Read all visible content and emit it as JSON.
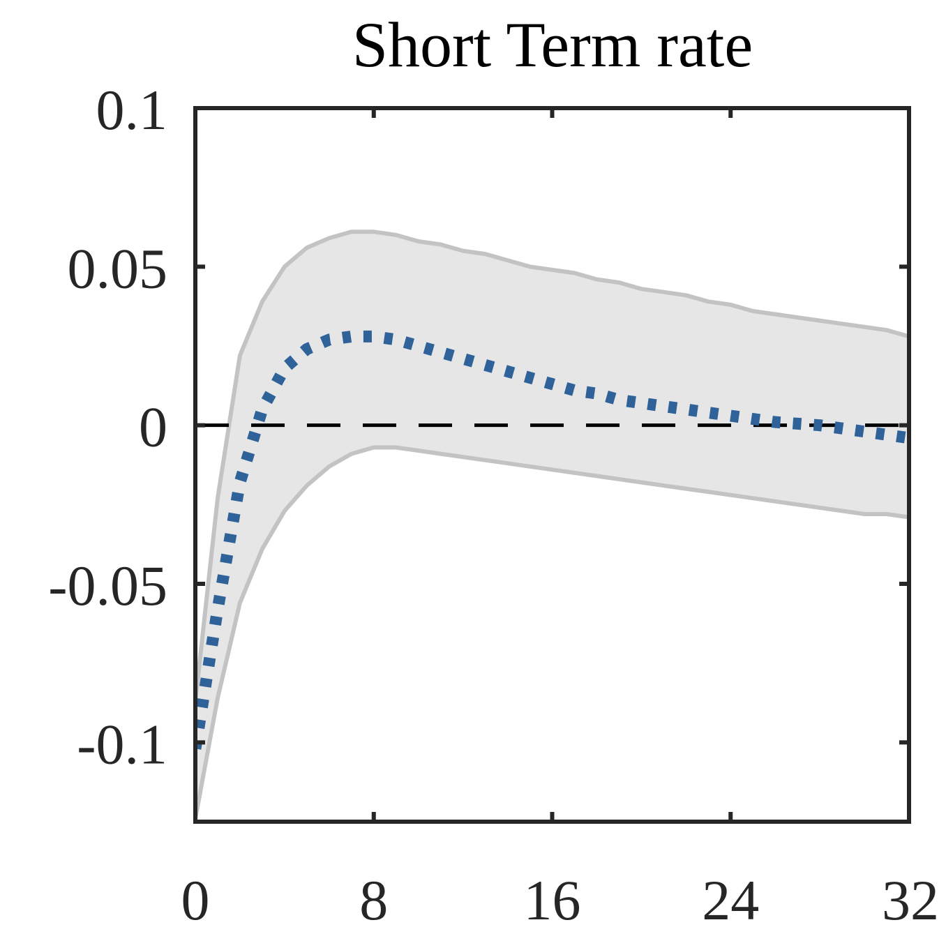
{
  "chart_data": {
    "type": "line",
    "title": "Short Term rate",
    "xlabel": "",
    "ylabel": "",
    "xlim": [
      0,
      32
    ],
    "ylim": [
      -0.125,
      0.1
    ],
    "xticks": [
      0,
      8,
      16,
      24,
      32
    ],
    "xtick_labels": [
      "0",
      "8",
      "16",
      "24",
      "32"
    ],
    "yticks": [
      -0.1,
      -0.05,
      0,
      0.05,
      0.1
    ],
    "ytick_labels": [
      "-0.1",
      "-0.05",
      "0",
      "0.05",
      "0.1"
    ],
    "grid": false,
    "legend": "none",
    "zero_line": 0,
    "x": [
      0,
      1,
      2,
      3,
      4,
      5,
      6,
      7,
      8,
      9,
      10,
      11,
      12,
      13,
      14,
      15,
      16,
      17,
      18,
      19,
      20,
      21,
      22,
      23,
      24,
      25,
      26,
      27,
      28,
      29,
      30,
      31,
      32
    ],
    "series": [
      {
        "role": "median",
        "style": "dotted",
        "color": "#2f6298",
        "values": [
          -0.102,
          -0.058,
          -0.018,
          0.005,
          0.018,
          0.024,
          0.027,
          0.028,
          0.028,
          0.027,
          0.025,
          0.023,
          0.021,
          0.019,
          0.017,
          0.015,
          0.013,
          0.011,
          0.01,
          0.008,
          0.007,
          0.006,
          0.005,
          0.004,
          0.003,
          0.002,
          0.001,
          0.0005,
          0.0,
          -0.001,
          -0.002,
          -0.003,
          -0.004
        ]
      },
      {
        "role": "band-upper",
        "style": "solid",
        "color": "#c3c3c3",
        "values": [
          -0.087,
          -0.023,
          0.022,
          0.039,
          0.05,
          0.056,
          0.059,
          0.061,
          0.061,
          0.06,
          0.058,
          0.057,
          0.055,
          0.054,
          0.052,
          0.05,
          0.049,
          0.048,
          0.046,
          0.045,
          0.043,
          0.042,
          0.041,
          0.039,
          0.038,
          0.036,
          0.035,
          0.034,
          0.033,
          0.032,
          0.031,
          0.03,
          0.028
        ]
      },
      {
        "role": "band-lower",
        "style": "solid",
        "color": "#c3c3c3",
        "values": [
          -0.124,
          -0.086,
          -0.056,
          -0.039,
          -0.027,
          -0.019,
          -0.013,
          -0.009,
          -0.007,
          -0.007,
          -0.008,
          -0.009,
          -0.01,
          -0.011,
          -0.012,
          -0.013,
          -0.014,
          -0.015,
          -0.016,
          -0.017,
          -0.018,
          -0.019,
          -0.02,
          -0.021,
          -0.022,
          -0.023,
          -0.024,
          -0.025,
          -0.026,
          -0.027,
          -0.028,
          -0.028,
          -0.029
        ]
      }
    ],
    "band_fill_color": "#e6e6e6",
    "zero_line_color": "#000000",
    "axis_color": "#262626"
  }
}
